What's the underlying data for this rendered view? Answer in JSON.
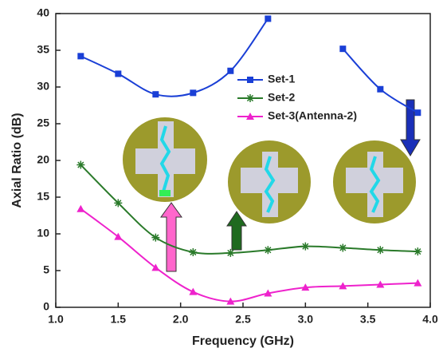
{
  "chart_data": {
    "type": "line",
    "xlabel": "Frequency (GHz)",
    "ylabel": "Axial Ratio (dB)",
    "x": [
      1.2,
      1.5,
      1.8,
      2.1,
      2.4,
      2.7,
      3.0,
      3.3,
      3.6,
      3.9
    ],
    "series": [
      {
        "name": "Set-1",
        "color": "#1a3fd6",
        "marker": "square",
        "values": [
          34.2,
          31.8,
          29.0,
          29.2,
          32.2,
          39.3,
          null,
          35.2,
          29.7,
          26.5
        ]
      },
      {
        "name": "Set-2",
        "color": "#2a7a2a",
        "marker": "star",
        "values": [
          19.4,
          14.2,
          9.5,
          7.5,
          7.4,
          7.8,
          8.3,
          8.1,
          7.8,
          7.6
        ]
      },
      {
        "name": "Set-3(Antenna-2)",
        "color": "#ee22cc",
        "marker": "triangle",
        "values": [
          13.4,
          9.6,
          5.4,
          2.1,
          0.8,
          1.9,
          2.7,
          2.9,
          3.1,
          3.3
        ]
      }
    ],
    "xlim": [
      1.0,
      4.0
    ],
    "xticks": [
      {
        "value": 1.0,
        "label": "1.0"
      },
      {
        "value": 1.5,
        "label": "1.5"
      },
      {
        "value": 2.0,
        "label": "2.0"
      },
      {
        "value": 2.5,
        "label": "2.5"
      },
      {
        "value": 3.0,
        "label": "3.0"
      },
      {
        "value": 3.5,
        "label": "3.5"
      },
      {
        "value": 4.0,
        "label": "4.0"
      }
    ],
    "ylim": [
      0,
      40
    ],
    "yticks": [
      0,
      5,
      10,
      15,
      20,
      25,
      30,
      35,
      40
    ],
    "legend": "upper-center"
  }
}
